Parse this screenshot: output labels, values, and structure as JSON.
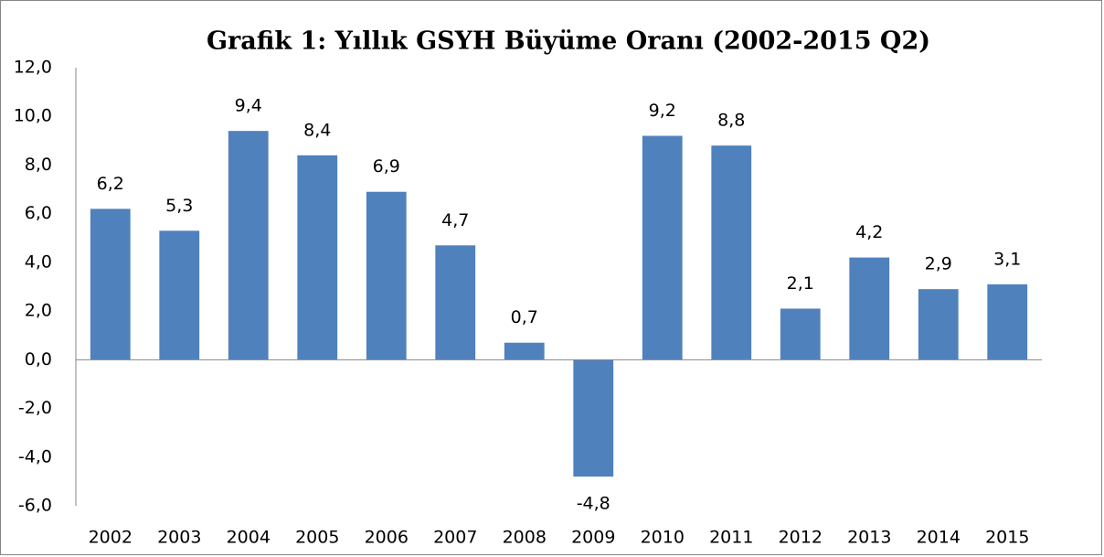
{
  "chart_data": {
    "type": "bar",
    "title": "Grafik 1: Yıllık GSYH Büyüme Oranı (2002-2015 Q2)",
    "categories": [
      "2002",
      "2003",
      "2004",
      "2005",
      "2006",
      "2007",
      "2008",
      "2009",
      "2010",
      "2011",
      "2012",
      "2013",
      "2014",
      "2015"
    ],
    "values": [
      6.2,
      5.3,
      9.4,
      8.4,
      6.9,
      4.7,
      0.7,
      -4.8,
      9.2,
      8.8,
      2.1,
      4.2,
      2.9,
      3.1
    ],
    "value_labels": [
      "6,2",
      "5,3",
      "9,4",
      "8,4",
      "6,9",
      "4,7",
      "0,7",
      "-4,8",
      "9,2",
      "8,8",
      "2,1",
      "4,2",
      "2,9",
      "3,1"
    ],
    "color": "#4f81bd",
    "ylim": [
      -6,
      12
    ],
    "yticks": [
      {
        "value": -6,
        "label": "-6,0"
      },
      {
        "value": -4,
        "label": "-4,0"
      },
      {
        "value": -2,
        "label": "-2,0"
      },
      {
        "value": 0,
        "label": "0,0"
      },
      {
        "value": 2,
        "label": "2,0"
      },
      {
        "value": 4,
        "label": "4,0"
      },
      {
        "value": 6,
        "label": "6,0"
      },
      {
        "value": 8,
        "label": "8,0"
      },
      {
        "value": 10,
        "label": "10,0"
      },
      {
        "value": 12,
        "label": "12,0"
      }
    ],
    "grid": false
  }
}
